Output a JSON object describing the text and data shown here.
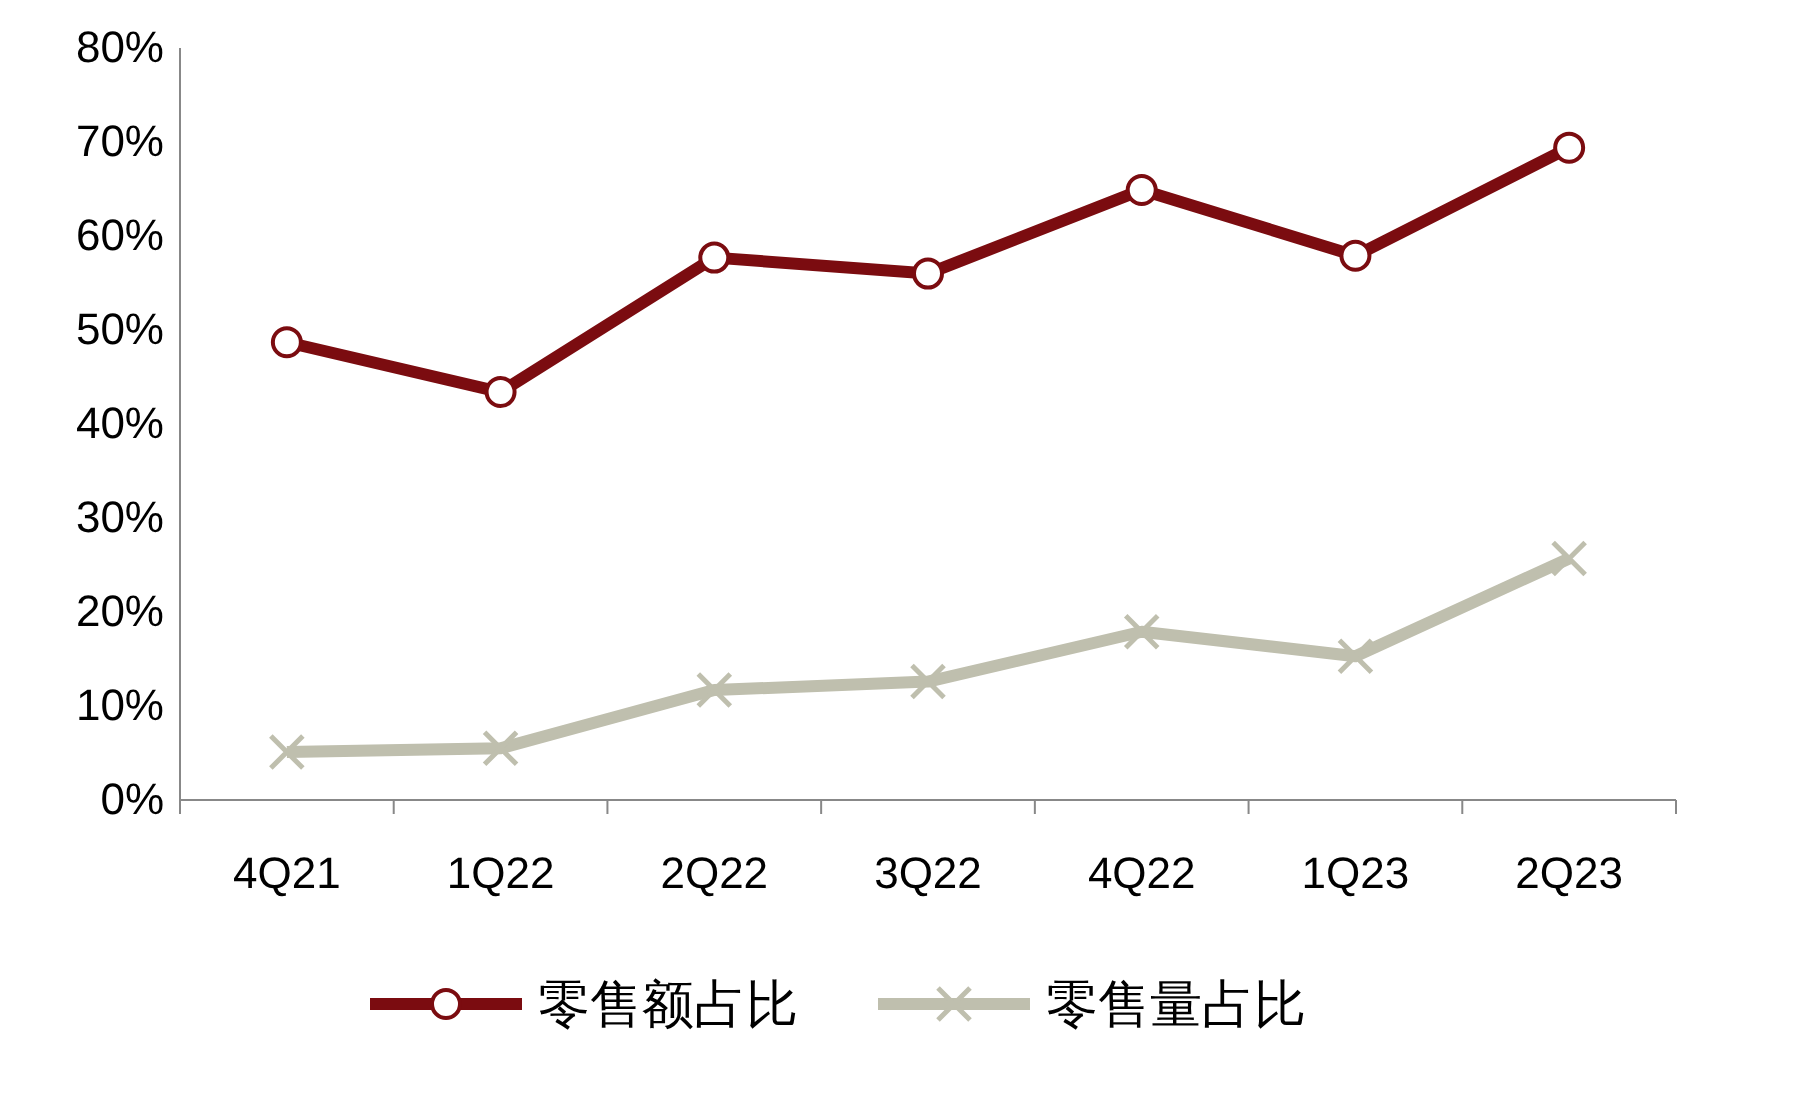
{
  "chart_data": {
    "type": "line",
    "categories": [
      "4Q21",
      "1Q22",
      "2Q22",
      "3Q22",
      "4Q22",
      "1Q23",
      "2Q23"
    ],
    "series": [
      {
        "name": "零售额占比",
        "color": "#7b0c10",
        "marker": "circle",
        "values": [
          48.7,
          43.4,
          57.7,
          56.0,
          64.9,
          57.9,
          69.4
        ]
      },
      {
        "name": "零售量占比",
        "color": "#bfbfae",
        "marker": "cross",
        "values": [
          5.1,
          5.5,
          11.7,
          12.6,
          17.9,
          15.3,
          25.7
        ]
      }
    ],
    "ylim": [
      0,
      80
    ],
    "yticks": [
      {
        "value": 0,
        "label": "0%"
      },
      {
        "value": 10,
        "label": "10%"
      },
      {
        "value": 20,
        "label": "20%"
      },
      {
        "value": 30,
        "label": "30%"
      },
      {
        "value": 40,
        "label": "40%"
      },
      {
        "value": 50,
        "label": "50%"
      },
      {
        "value": 60,
        "label": "60%"
      },
      {
        "value": 70,
        "label": "70%"
      },
      {
        "value": 80,
        "label": "80%"
      }
    ],
    "grid": false,
    "legend": "bottom",
    "line_style": "solid"
  }
}
